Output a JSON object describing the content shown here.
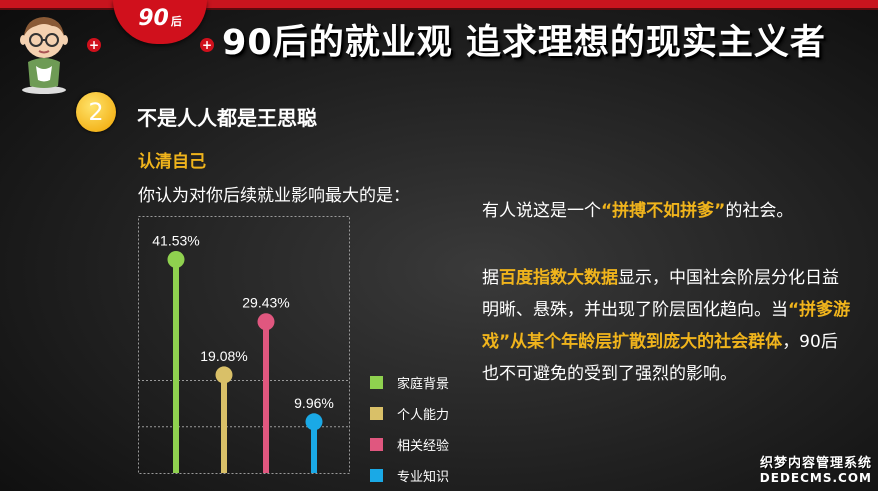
{
  "header": {
    "badge_main": "90",
    "badge_sub": "后",
    "title": "90后的就业观 追求理想的现实主义者"
  },
  "section": {
    "number": "2",
    "title": "不是人人都是王思聪",
    "subtitle": "认清自己",
    "question": "你认为对你后续就业影响最大的是："
  },
  "chart_data": {
    "type": "bar",
    "categories": [
      "家庭背景",
      "个人能力",
      "相关经验",
      "专业知识"
    ],
    "values": [
      41.53,
      19.08,
      29.43,
      9.96
    ],
    "value_labels": [
      "41.53%",
      "19.08%",
      "29.43%",
      "9.96%"
    ],
    "colors": [
      "#8fd14f",
      "#d9c068",
      "#e0577f",
      "#1aa9e6"
    ],
    "ylim": [
      0,
      50
    ],
    "grid": true,
    "legend_position": "right"
  },
  "paragraph1": {
    "before": "有人说这是一个",
    "highlight": "“拼搏不如拼爹”",
    "after": "的社会。"
  },
  "paragraph2": {
    "t1": "据",
    "h1": "百度指数大数据",
    "t2": "显示，中国社会阶层分化日益明晰、悬殊，并出现了阶层固化趋向。当",
    "h2": "“拼爹游戏”从某个年龄层扩散到庞大的社会群体",
    "t3": "，90后也不可避免的受到了强烈的影响。"
  },
  "watermark": {
    "line1": "织梦内容管理系统",
    "line2": "DEDECMS.COM"
  }
}
